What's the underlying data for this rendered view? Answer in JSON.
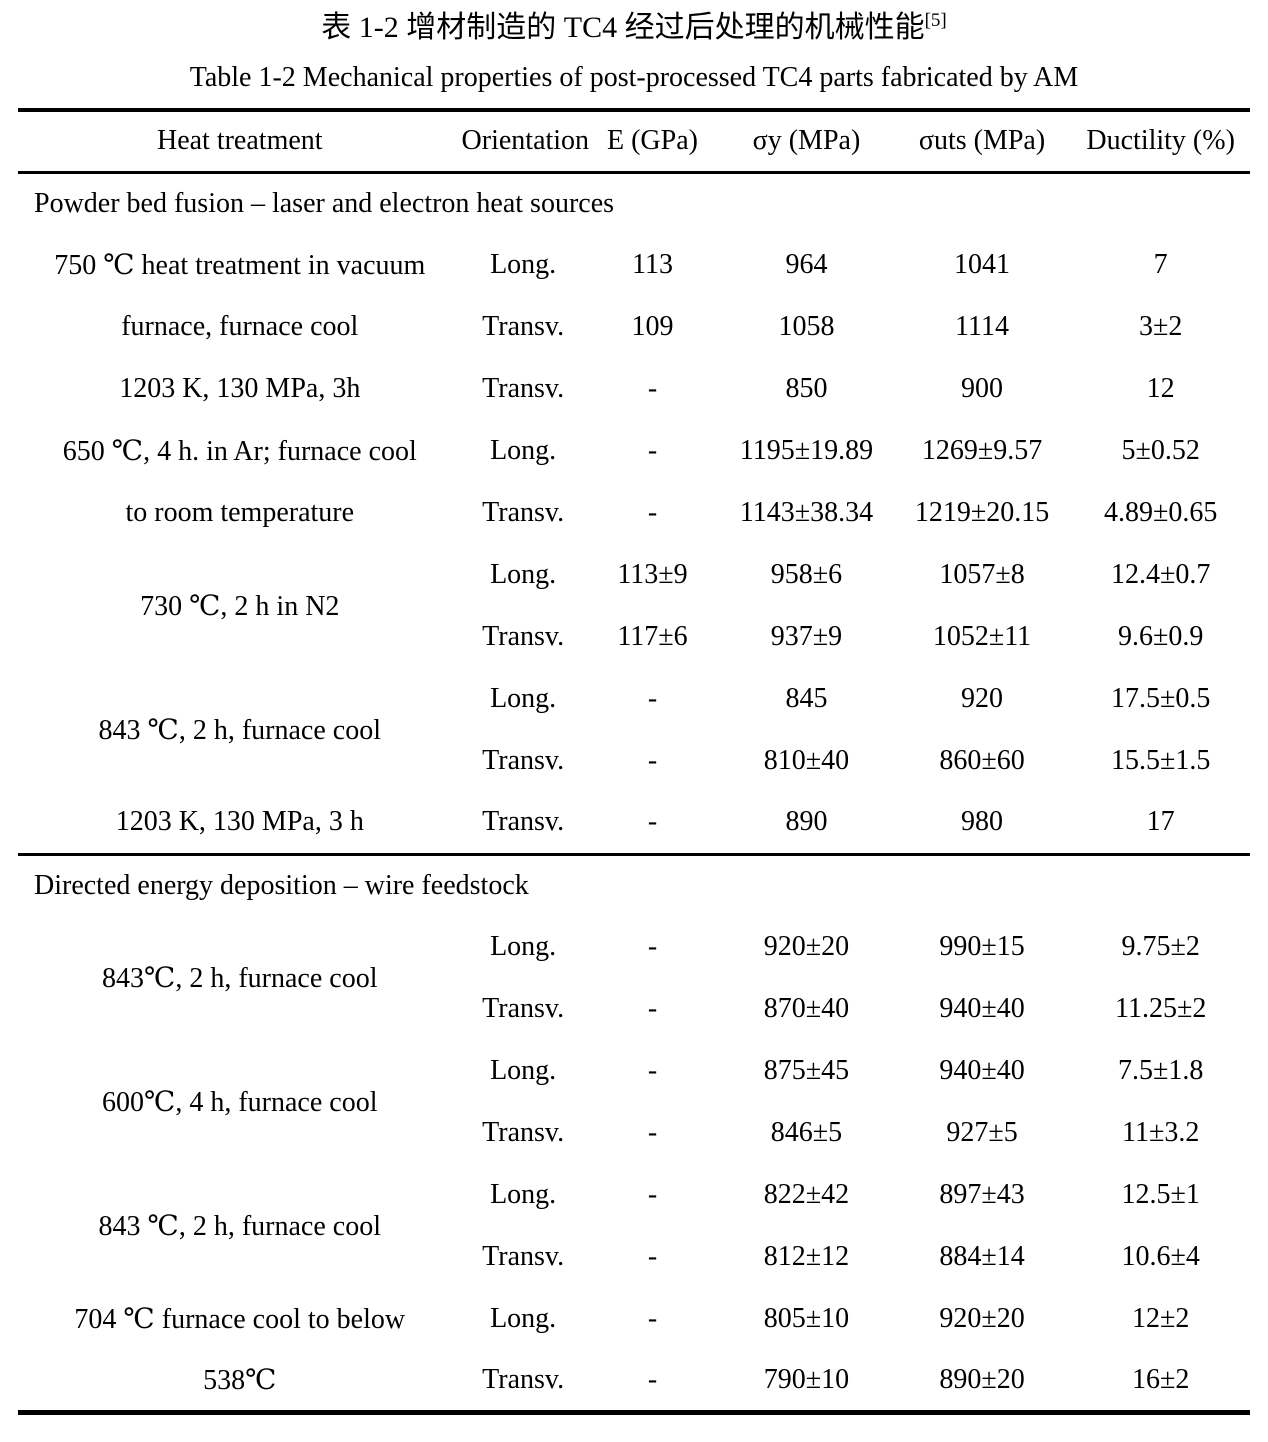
{
  "caption_zh": {
    "text": "表 1-2 增材制造的 TC4 经过后处理的机械性能",
    "superscript": "[5]"
  },
  "caption_en": "Table 1-2 Mechanical properties of post-processed TC4 parts fabricated by AM",
  "table": {
    "columns": [
      "Heat treatment",
      "Orientation",
      "E (GPa)",
      "σy (MPa)",
      "σuts (MPa)",
      "Ductility (%)"
    ],
    "sections": [
      {
        "label": "Powder bed fusion – laser and electron heat sources",
        "groups": [
          {
            "span": false,
            "treatment": [
              "750 ℃ heat treatment in vacuum",
              "furnace, furnace cool"
            ],
            "rows": [
              {
                "orientation": "Long.",
                "e": "113",
                "sy": "964",
                "suts": "1041",
                "ductility": "7"
              },
              {
                "orientation": "Transv.",
                "e": "109",
                "sy": "1058",
                "suts": "1114",
                "ductility": "3±2"
              }
            ]
          },
          {
            "span": false,
            "treatment": [
              "1203 K, 130 MPa, 3h"
            ],
            "rows": [
              {
                "orientation": "Transv.",
                "e": "-",
                "sy": "850",
                "suts": "900",
                "ductility": "12"
              }
            ]
          },
          {
            "span": false,
            "treatment": [
              "650 ℃, 4 h. in Ar; furnace cool",
              "to room temperature"
            ],
            "rows": [
              {
                "orientation": "Long.",
                "e": "-",
                "sy": "1195±19.89",
                "suts": "1269±9.57",
                "ductility": "5±0.52"
              },
              {
                "orientation": "Transv.",
                "e": "-",
                "sy": "1143±38.34",
                "suts": "1219±20.15",
                "ductility": "4.89±0.65"
              }
            ]
          },
          {
            "span": true,
            "treatment": "730 ℃, 2 h in N2",
            "rows": [
              {
                "orientation": "Long.",
                "e": "113±9",
                "sy": "958±6",
                "suts": "1057±8",
                "ductility": "12.4±0.7"
              },
              {
                "orientation": "Transv.",
                "e": "117±6",
                "sy": "937±9",
                "suts": "1052±11",
                "ductility": "9.6±0.9"
              }
            ]
          },
          {
            "span": true,
            "treatment": "843 ℃, 2 h, furnace cool",
            "rows": [
              {
                "orientation": "Long.",
                "e": "-",
                "sy": "845",
                "suts": "920",
                "ductility": "17.5±0.5"
              },
              {
                "orientation": "Transv.",
                "e": "-",
                "sy": "810±40",
                "suts": "860±60",
                "ductility": "15.5±1.5"
              }
            ]
          },
          {
            "span": false,
            "treatment": [
              "1203 K, 130 MPa, 3 h"
            ],
            "rows": [
              {
                "orientation": "Transv.",
                "e": "-",
                "sy": "890",
                "suts": "980",
                "ductility": "17"
              }
            ]
          }
        ]
      },
      {
        "label": "Directed energy deposition – wire feedstock",
        "groups": [
          {
            "span": true,
            "treatment": "843℃, 2 h, furnace cool",
            "rows": [
              {
                "orientation": "Long.",
                "e": "-",
                "sy": "920±20",
                "suts": "990±15",
                "ductility": "9.75±2"
              },
              {
                "orientation": "Transv.",
                "e": "-",
                "sy": "870±40",
                "suts": "940±40",
                "ductility": "11.25±2"
              }
            ]
          },
          {
            "span": true,
            "treatment": "600℃, 4 h, furnace cool",
            "rows": [
              {
                "orientation": "Long.",
                "e": "-",
                "sy": "875±45",
                "suts": "940±40",
                "ductility": "7.5±1.8"
              },
              {
                "orientation": "Transv.",
                "e": "-",
                "sy": "846±5",
                "suts": "927±5",
                "ductility": "11±3.2"
              }
            ]
          },
          {
            "span": true,
            "treatment": "843 ℃, 2 h, furnace cool",
            "rows": [
              {
                "orientation": "Long.",
                "e": "-",
                "sy": "822±42",
                "suts": "897±43",
                "ductility": "12.5±1"
              },
              {
                "orientation": "Transv.",
                "e": "-",
                "sy": "812±12",
                "suts": "884±14",
                "ductility": "10.6±4"
              }
            ]
          },
          {
            "span": false,
            "treatment": [
              "704 ℃ furnace cool to below",
              "538℃"
            ],
            "rows": [
              {
                "orientation": "Long.",
                "e": "-",
                "sy": "805±10",
                "suts": "920±20",
                "ductility": "12±2"
              },
              {
                "orientation": "Transv.",
                "e": "-",
                "sy": "790±10",
                "suts": "890±20",
                "ductility": "16±2"
              }
            ]
          }
        ]
      }
    ]
  }
}
